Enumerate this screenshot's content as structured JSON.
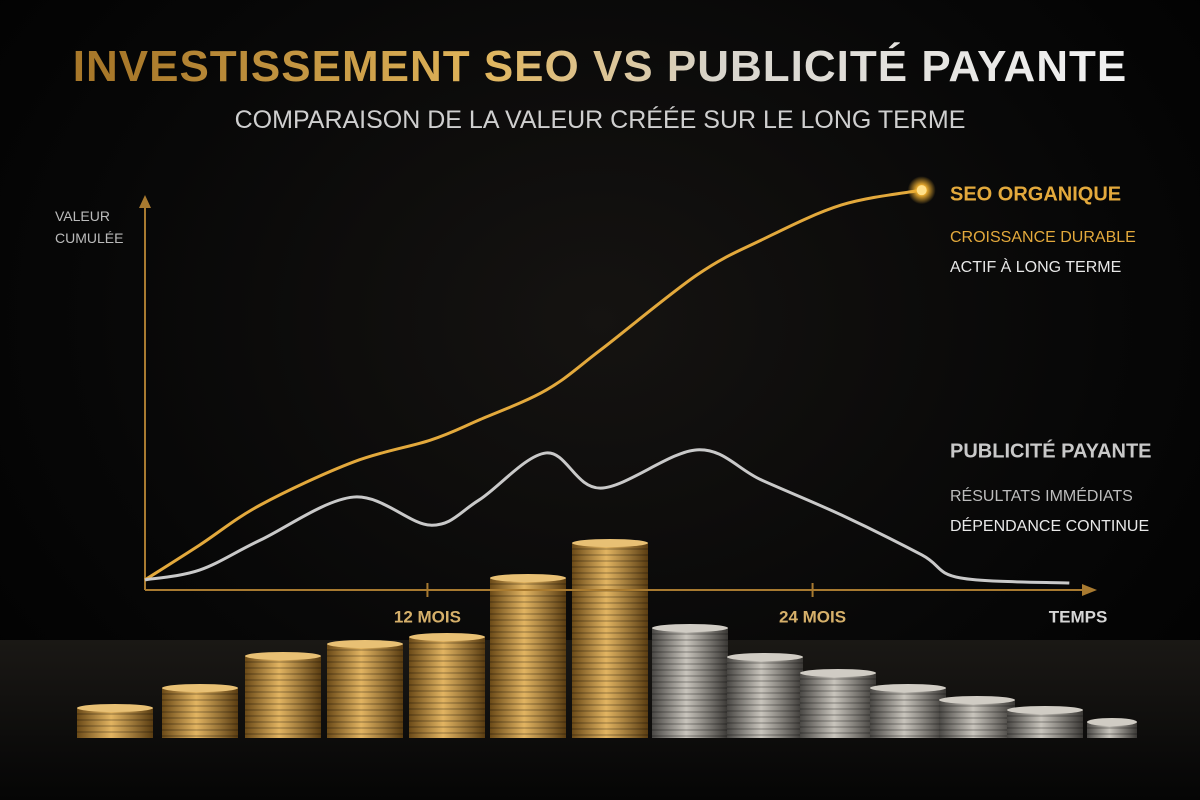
{
  "chart_data": {
    "type": "line",
    "title": "INVESTISSEMENT SEO VS PUBLICITÉ PAYANTE",
    "subtitle": "COMPARAISON DE LA VALEUR CRÉÉE SUR LE LONG TERME",
    "y_label": "VALEUR CUMULÉE",
    "x_label": "TEMPS",
    "x": [
      3.2,
      4.9,
      6.8,
      9.7,
      12.1,
      13.6,
      15.7,
      17.4,
      20.4,
      22.4,
      24.9,
      27.4,
      28.6,
      32.0
    ],
    "xlim": [
      3.2,
      32.8
    ],
    "xticks": [
      {
        "value": 12,
        "label": "12 MOIS"
      },
      {
        "value": 24,
        "label": "24 MOIS"
      }
    ],
    "ylim": [
      0,
      105
    ],
    "series": [
      {
        "name": "SEO ORGANIQUE",
        "color": "#e3a93c",
        "values": [
          2.6,
          11.5,
          21.8,
          32.8,
          38.4,
          43.5,
          51.2,
          61.5,
          80.7,
          89.6,
          98.6,
          102.4,
          null,
          null
        ],
        "annotations": [
          {
            "text": "CROISSANCE DURABLE",
            "color": "#e3a93c"
          },
          {
            "text": "ACTIF À LONG TERME",
            "color": "#e8e8e8"
          }
        ]
      },
      {
        "name": "PUBLICITÉ PAYANTE",
        "color": "#c9c9c9",
        "values": [
          2.6,
          5.1,
          12.8,
          23.8,
          16.6,
          23.0,
          35.1,
          26.1,
          35.9,
          28.2,
          19.2,
          9.0,
          3.1,
          1.8
        ],
        "annotations": [
          {
            "text": "RÉSULTATS IMMÉDIATS",
            "color": "#bdbdbd"
          },
          {
            "text": "DÉPENDANCE CONTINUE",
            "color": "#e8e8e8"
          }
        ]
      }
    ]
  }
}
